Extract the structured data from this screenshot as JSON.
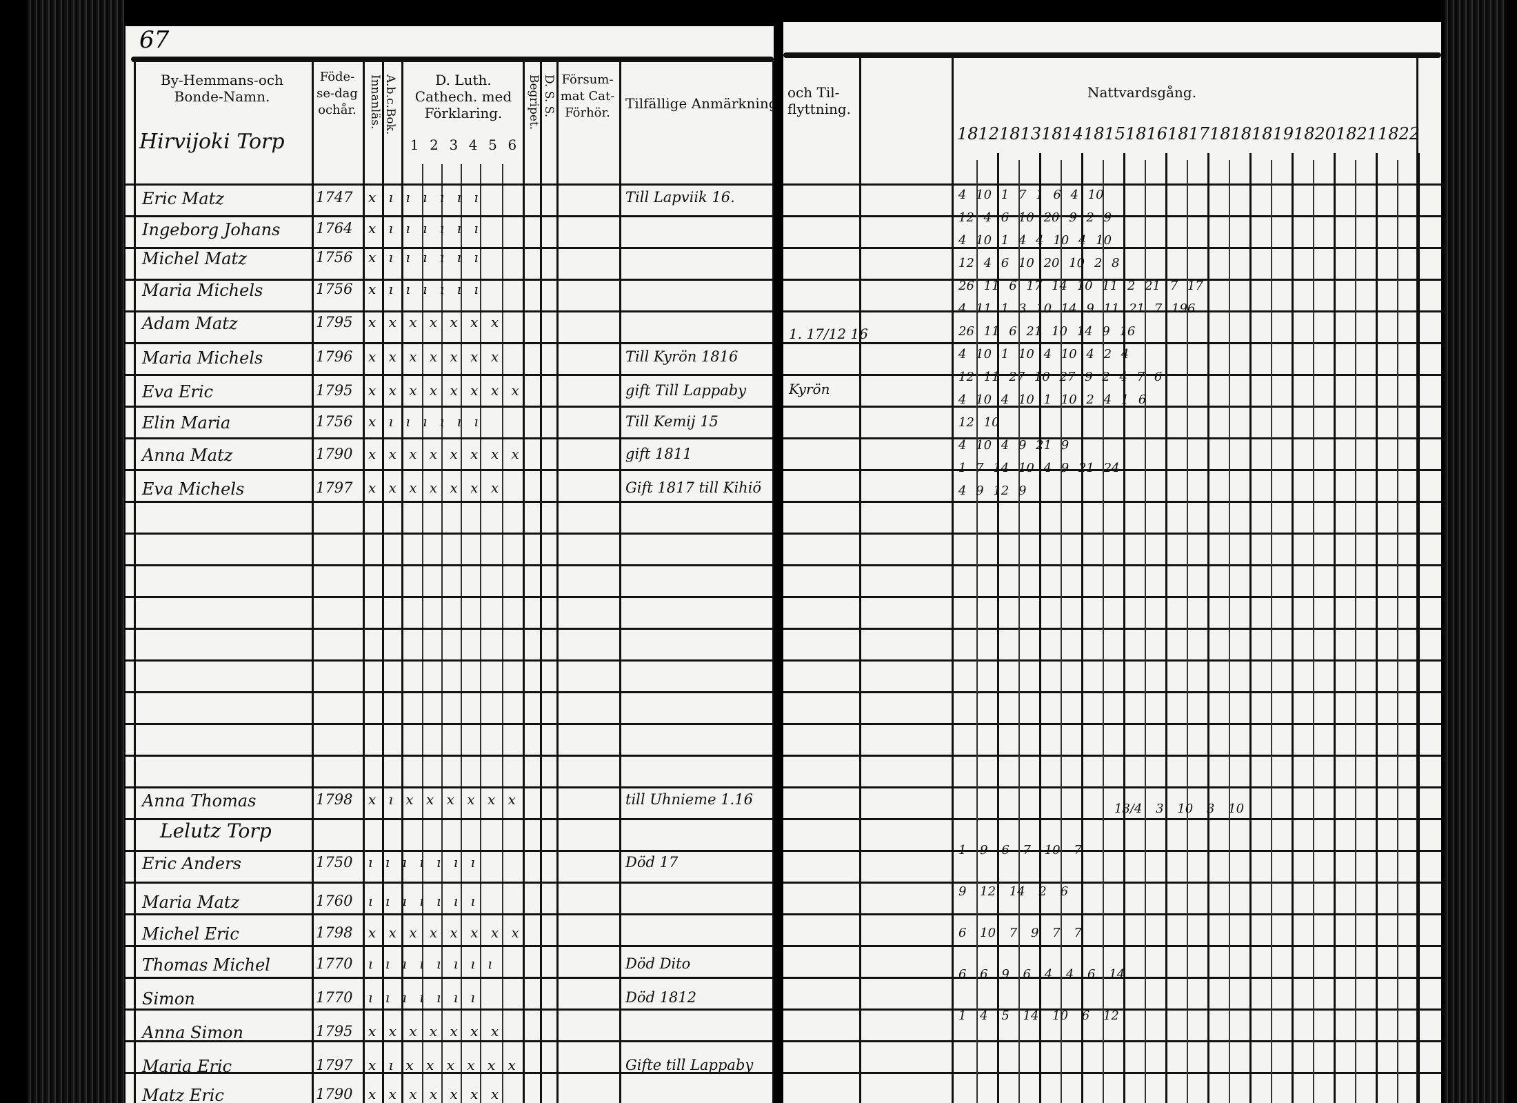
{
  "page_number": "67",
  "left_page": {
    "headers": {
      "name": "By-Hemmans-och Bonde-Namn.",
      "birth": "Föde-se-dag ochår.",
      "abc": "A.b.c.Bok.",
      "innanlas": "Innanläs.",
      "catech": "D. Luth. Cathech. med Förklaring.",
      "catech_cols": [
        "1",
        "2",
        "3",
        "4",
        "5",
        "6"
      ],
      "begripet": "Begripet.",
      "dss": "D. S. S.",
      "forsum": "Försum-mat Cat-Förhör.",
      "anmark": "Tilfällige Anmärkningar"
    },
    "farm1": "Hirvijoki Torp",
    "farm2": "Lelutz Torp",
    "rows1": [
      {
        "name": "Eric Matz",
        "year": "1747",
        "marks": "x  ı ı ı ı ı ı",
        "note": "Till Lapviik 16."
      },
      {
        "name": "Ingeborg Johans",
        "year": "1764",
        "marks": "x  ı ı ı ı ı ı",
        "note": ""
      },
      {
        "name": "Michel Matz",
        "year": "1756",
        "marks": "x  ı ı ı ı ı ı",
        "note": ""
      },
      {
        "name": "Maria Michels",
        "year": "1756",
        "marks": "x  ı ı ı ı ı ı",
        "note": ""
      },
      {
        "name": "Adam Matz",
        "year": "1795",
        "marks": "x  x x x x x x",
        "note": ""
      },
      {
        "name": "Maria Michels",
        "year": "1796",
        "marks": "x  x x x x x x",
        "note": "Till Kyrön 1816"
      },
      {
        "name": "Eva Eric",
        "year": "1795",
        "marks": "x x  x x x x x x",
        "note": "gift Till Lappaby"
      },
      {
        "name": "Elin Maria",
        "year": "1756",
        "marks": "x  ı ı ı ı ı ı",
        "note": "Till Kemij 15"
      },
      {
        "name": "Anna Matz",
        "year": "1790",
        "marks": "x x  x x x x x x",
        "note": "gift 1811"
      },
      {
        "name": "Eva Michels",
        "year": "1797",
        "marks": "x x  x x x x x",
        "note": "Gift 1817 till Kihiö"
      }
    ],
    "rows2": [
      {
        "name": "Anna Thomas",
        "year": "1798",
        "marks": "x ı  x x x x x x",
        "note": "till Uhnieme 1.16"
      },
      {
        "name": "Eric Anders",
        "year": "1750",
        "marks": "ı  ı ı ı ı ı ı",
        "note": "Död 17"
      },
      {
        "name": "Maria Matz",
        "year": "1760",
        "marks": "ı  ı ı ı ı ı ı",
        "note": ""
      },
      {
        "name": "Michel Eric",
        "year": "1798",
        "marks": "x x  x x x x x x",
        "note": ""
      },
      {
        "name": "Thomas Michel",
        "year": "1770",
        "marks": "ı ı  ı ı ı ı ı ı",
        "note": "Död Dito"
      },
      {
        "name": "Simon",
        "year": "1770",
        "marks": "ı  ı ı ı ı ı ı",
        "note": "Död 1812"
      },
      {
        "name": "Anna Simon",
        "year": "1795",
        "marks": "x x  x x x x x",
        "note": ""
      },
      {
        "name": "Maria Eric",
        "year": "1797",
        "marks": "x ı  x x x x x x",
        "note": "Gifte till Lappaby"
      },
      {
        "name": "Matz Eric",
        "year": "1790",
        "marks": "x  x x x x x x",
        "note": ""
      }
    ]
  },
  "right_page": {
    "headers": {
      "flytt": "och Til-flyttning.",
      "nattvard": "Nattvardsgång."
    },
    "years": [
      "1812",
      "1813",
      "1814",
      "1815",
      "1816",
      "1817",
      "1818",
      "1819",
      "1820",
      "1821",
      "1822"
    ],
    "entries1": [
      "4 10   1 7   1 6   4 10",
      "12 4   6 10  20 9  2 9",
      "4 10   1 4   4 10  4 10",
      "12 4   6 10  20 10  2 8",
      "26 11  6 17  14 10  11 2  21 7  17",
      "4 11   1 3  10 14 9  11  21 7  196",
      "26 11  6 21  10 14 9  16",
      "4 10   1 10  4 10  4 2  4",
      "12 11  27 10  27 9  2 4  7 6",
      "4 10   4 10  1 10  2 4  1 6",
      "12 10",
      "4 10    4 9  21 9",
      "1 7  14 10  4 9  21 24",
      "4 9  12 9"
    ],
    "flytt_notes": [
      "1. 17/12 16",
      "Kyrön"
    ],
    "entries2": [
      "13/4  3 10  3 10",
      "1 9  6  7  10 7",
      "9  12  14  2 6",
      "6  10  7  9 7  7",
      "6  6  9  6  4 4  6  14",
      "1  4  5  14  10  6  12"
    ]
  }
}
